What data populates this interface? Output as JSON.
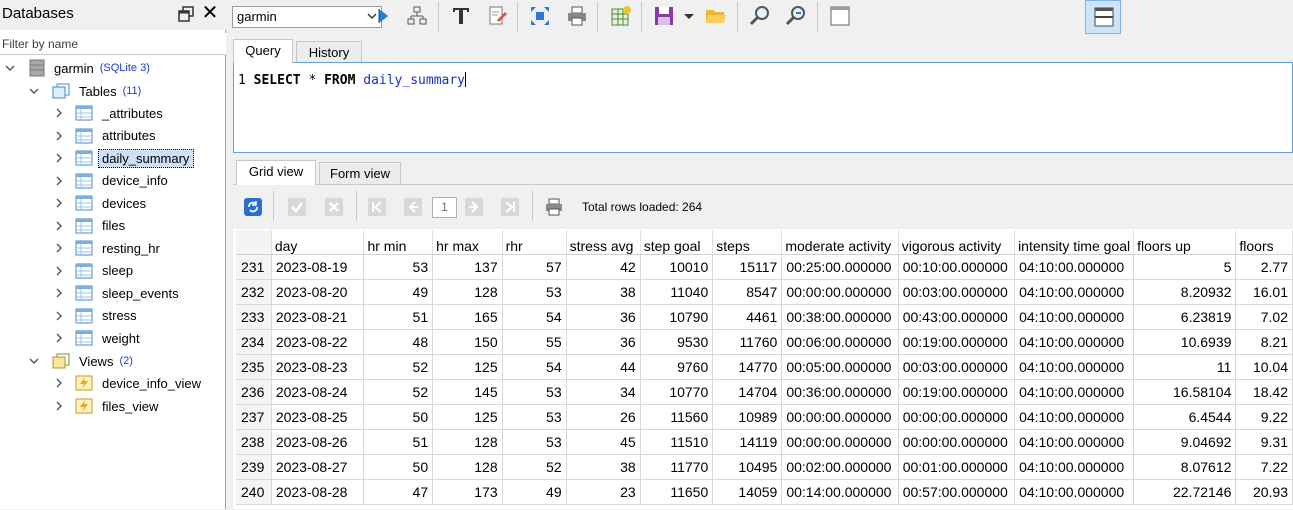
{
  "left_panel": {
    "title": "Databases",
    "filter_placeholder": "Filter by name",
    "database": {
      "name": "garmin",
      "type": "(SQLite 3)"
    },
    "tables_group": {
      "label": "Tables",
      "count": "(11)"
    },
    "tables": [
      "_attributes",
      "attributes",
      "daily_summary",
      "device_info",
      "devices",
      "files",
      "resting_hr",
      "sleep",
      "sleep_events",
      "stress",
      "weight"
    ],
    "selected_table": "daily_summary",
    "views_group": {
      "label": "Views",
      "count": "(2)"
    },
    "views": [
      "device_info_view",
      "files_view"
    ]
  },
  "toolbar": {
    "database_select": "garmin",
    "icons": [
      "execute-icon",
      "explain-icon",
      "format-sql-icon",
      "clear-icon",
      "expand-icon",
      "print-icon",
      "export-icon",
      "save-icon",
      "open-icon",
      "find-icon",
      "replace-icon",
      "layout-vertical-icon",
      "layout-horizontal-icon"
    ]
  },
  "query": {
    "tabs": [
      "Query",
      "History"
    ],
    "line_number": "1",
    "sql_keyword1": "SELECT",
    "sql_star": " * ",
    "sql_keyword2": "FROM",
    "sql_table": "daily_summary"
  },
  "results": {
    "tabs": [
      "Grid view",
      "Form view"
    ],
    "page": "1",
    "total_rows": "Total rows loaded: 264",
    "columns": [
      "day",
      "hr min",
      "hr max",
      "rhr",
      "stress avg",
      "step goal",
      "steps",
      "moderate activity",
      "vigorous activity",
      "intensity time goal",
      "floors up",
      "floors"
    ],
    "rows": [
      {
        "n": "231",
        "c": [
          "2023-08-19",
          "53",
          "137",
          "57",
          "42",
          "10010",
          "15117",
          "00:25:00.000000",
          "00:10:00.000000",
          "04:10:00.000000",
          "5",
          "2.77"
        ]
      },
      {
        "n": "232",
        "c": [
          "2023-08-20",
          "49",
          "128",
          "53",
          "38",
          "11040",
          "8547",
          "00:00:00.000000",
          "00:03:00.000000",
          "04:10:00.000000",
          "8.20932",
          "16.01"
        ]
      },
      {
        "n": "233",
        "c": [
          "2023-08-21",
          "51",
          "165",
          "54",
          "36",
          "10790",
          "4461",
          "00:38:00.000000",
          "00:43:00.000000",
          "04:10:00.000000",
          "6.23819",
          "7.02"
        ]
      },
      {
        "n": "234",
        "c": [
          "2023-08-22",
          "48",
          "150",
          "55",
          "36",
          "9530",
          "11760",
          "00:06:00.000000",
          "00:19:00.000000",
          "04:10:00.000000",
          "10.6939",
          "8.21"
        ]
      },
      {
        "n": "235",
        "c": [
          "2023-08-23",
          "52",
          "125",
          "54",
          "44",
          "9760",
          "14770",
          "00:05:00.000000",
          "00:03:00.000000",
          "04:10:00.000000",
          "11",
          "10.04"
        ]
      },
      {
        "n": "236",
        "c": [
          "2023-08-24",
          "52",
          "145",
          "53",
          "34",
          "10770",
          "14704",
          "00:36:00.000000",
          "00:19:00.000000",
          "04:10:00.000000",
          "16.58104",
          "18.42"
        ]
      },
      {
        "n": "237",
        "c": [
          "2023-08-25",
          "50",
          "125",
          "53",
          "26",
          "11560",
          "10989",
          "00:00:00.000000",
          "00:00:00.000000",
          "04:10:00.000000",
          "6.4544",
          "9.22"
        ]
      },
      {
        "n": "238",
        "c": [
          "2023-08-26",
          "51",
          "128",
          "53",
          "45",
          "11510",
          "14119",
          "00:00:00.000000",
          "00:00:00.000000",
          "04:10:00.000000",
          "9.04692",
          "9.31"
        ]
      },
      {
        "n": "239",
        "c": [
          "2023-08-27",
          "50",
          "128",
          "52",
          "38",
          "11770",
          "10495",
          "00:02:00.000000",
          "00:01:00.000000",
          "04:10:00.000000",
          "8.07612",
          "7.22"
        ]
      },
      {
        "n": "240",
        "c": [
          "2023-08-28",
          "47",
          "173",
          "49",
          "23",
          "11650",
          "14059",
          "00:14:00.000000",
          "00:57:00.000000",
          "04:10:00.000000",
          "22.72146",
          "20.93"
        ]
      }
    ]
  }
}
